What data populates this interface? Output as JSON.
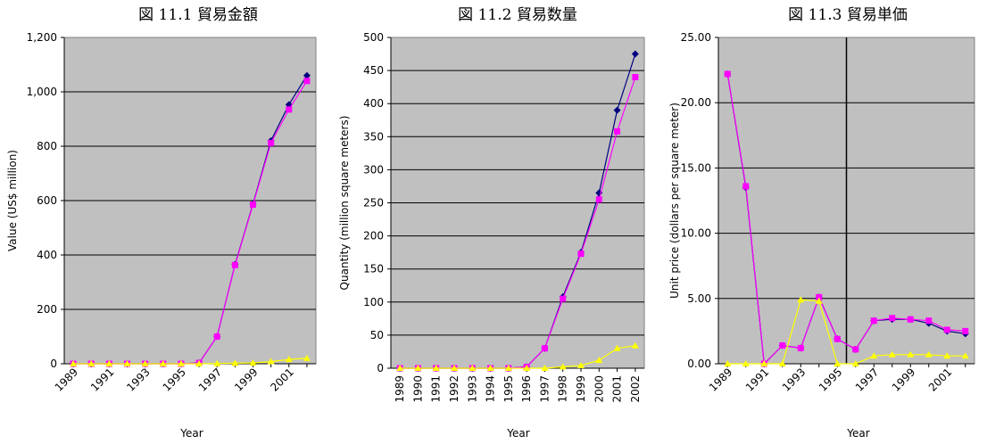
{
  "colors": {
    "plot_bg": "#c0c0c0",
    "grid": "#000000",
    "series_navy": "#000080",
    "series_magenta": "#ff00ff",
    "series_yellow": "#ffff00"
  },
  "chart_data": [
    {
      "type": "line",
      "title": "図 11.1  貿易金額",
      "xlabel": "Year",
      "ylabel": "Value (US$ million)",
      "ylim": [
        0,
        1200
      ],
      "yticks": [
        "0",
        "200",
        "400",
        "600",
        "800",
        "1,000",
        "1,200"
      ],
      "x": [
        1989,
        1990,
        1991,
        1992,
        1993,
        1994,
        1995,
        1996,
        1997,
        1998,
        1999,
        2000,
        2001,
        2002
      ],
      "xtick_labels": [
        "1989",
        "1991",
        "1993",
        "1995",
        "1997",
        "1999",
        "2001"
      ],
      "xtick_rotated": true,
      "grid": "horizontal",
      "series": [
        {
          "color": "navy",
          "marker": "diamond",
          "values": [
            0,
            0,
            0,
            0,
            0,
            0,
            0,
            3,
            100,
            365,
            588,
            820,
            953,
            1060
          ]
        },
        {
          "color": "magenta",
          "marker": "square",
          "values": [
            0,
            0,
            0,
            0,
            0,
            0,
            0,
            3,
            100,
            363,
            585,
            812,
            935,
            1040
          ]
        },
        {
          "color": "yellow",
          "marker": "triangle",
          "values": [
            0,
            0,
            0,
            0,
            0,
            0,
            0,
            0,
            1,
            2,
            3,
            8,
            16,
            20
          ]
        }
      ]
    },
    {
      "type": "line",
      "title": "図 11.2  貿易数量",
      "xlabel": "Year",
      "ylabel": "Quantity (million square meters)",
      "ylim": [
        0,
        500
      ],
      "yticks": [
        "0",
        "50",
        "100",
        "150",
        "200",
        "250",
        "300",
        "350",
        "400",
        "450",
        "500"
      ],
      "x": [
        1989,
        1990,
        1991,
        1992,
        1993,
        1994,
        1995,
        1996,
        1997,
        1998,
        1999,
        2000,
        2001,
        2002
      ],
      "xtick_labels": [
        "1989",
        "1990",
        "1991",
        "1992",
        "1993",
        "1994",
        "1995",
        "1996",
        "1997",
        "1998",
        "1999",
        "2000",
        "2001",
        "2002"
      ],
      "xtick_rotated": true,
      "grid": "horizontal",
      "series": [
        {
          "color": "navy",
          "marker": "diamond",
          "values": [
            0,
            0,
            0,
            0,
            0,
            0,
            0,
            2,
            30,
            108,
            175,
            265,
            390,
            475
          ]
        },
        {
          "color": "magenta",
          "marker": "square",
          "values": [
            0,
            0,
            0,
            0,
            0,
            0,
            0,
            2,
            30,
            105,
            173,
            255,
            358,
            440
          ]
        },
        {
          "color": "yellow",
          "marker": "triangle",
          "values": [
            0,
            0,
            0,
            0,
            0,
            0,
            0,
            0,
            0,
            2,
            4,
            12,
            30,
            34
          ]
        }
      ]
    },
    {
      "type": "line",
      "title": "図 11.3  貿易単価",
      "xlabel": "Year",
      "ylabel": "Unit price (dollars per square meter)",
      "ylim": [
        0,
        25
      ],
      "yticks": [
        "0.00",
        "5.00",
        "10.00",
        "15.00",
        "20.00",
        "25.00"
      ],
      "x": [
        1989,
        1990,
        1991,
        1992,
        1993,
        1994,
        1995,
        1996,
        1997,
        1998,
        1999,
        2000,
        2001,
        2002
      ],
      "xtick_labels": [
        "1989",
        "1991",
        "1993",
        "1995",
        "1997",
        "1999",
        "2001"
      ],
      "xtick_rotated": true,
      "grid": "horizontal",
      "vertical_rule_at": 1995.5,
      "series": [
        {
          "color": "navy",
          "marker": "diamond",
          "values": [
            22.2,
            13.5,
            0,
            1.4,
            1.2,
            5.1,
            1.9,
            1.1,
            3.3,
            3.4,
            3.4,
            3.1,
            2.5,
            2.3
          ]
        },
        {
          "color": "magenta",
          "marker": "square",
          "values": [
            22.2,
            13.6,
            0,
            1.4,
            1.2,
            5.1,
            1.9,
            1.1,
            3.3,
            3.5,
            3.4,
            3.3,
            2.6,
            2.5
          ]
        },
        {
          "color": "yellow",
          "marker": "triangle",
          "values": [
            0,
            0,
            0,
            0,
            4.9,
            4.8,
            0,
            0,
            0.6,
            0.7,
            0.7,
            0.7,
            0.6,
            0.6
          ]
        }
      ]
    }
  ]
}
